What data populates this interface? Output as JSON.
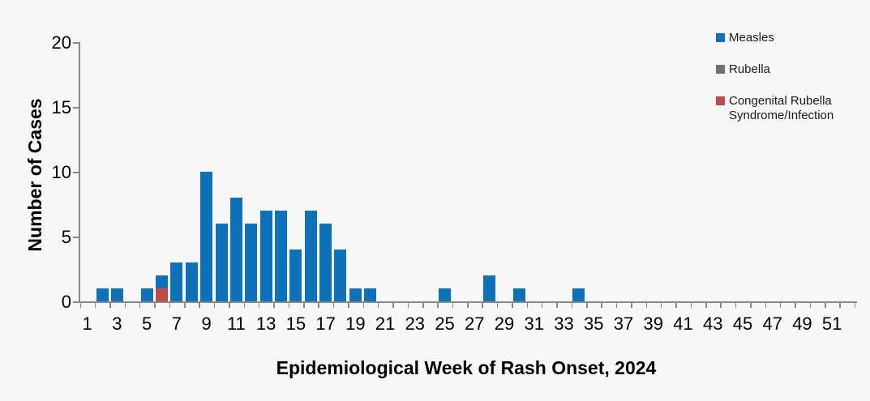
{
  "chart_data": {
    "type": "bar",
    "stacked": true,
    "title": "",
    "xlabel": "Epidemiological Week of Rash Onset, 2024",
    "ylabel": "Number of Cases",
    "x_weeks_range": [
      1,
      52
    ],
    "xtick_labels": [
      "1",
      "3",
      "5",
      "7",
      "9",
      "11",
      "13",
      "15",
      "17",
      "19",
      "21",
      "23",
      "25",
      "27",
      "29",
      "31",
      "33",
      "35",
      "37",
      "39",
      "41",
      "43",
      "45",
      "47",
      "49",
      "51"
    ],
    "yticks": [
      "0",
      "5",
      "10",
      "15",
      "20"
    ],
    "ytick_values": [
      0,
      5,
      10,
      15,
      20
    ],
    "ylim": [
      0,
      20
    ],
    "grid": false,
    "legend_position": "top-right",
    "series": [
      {
        "name": "Measles",
        "color": "#0f72b8",
        "values": [
          0,
          1,
          1,
          0,
          1,
          1,
          3,
          3,
          10,
          6,
          8,
          6,
          7,
          7,
          4,
          7,
          6,
          4,
          1,
          1,
          0,
          0,
          0,
          0,
          1,
          0,
          0,
          2,
          0,
          1,
          0,
          0,
          0,
          1,
          0,
          0,
          0,
          0,
          0,
          0,
          0,
          0,
          0,
          0,
          0,
          0,
          0,
          0,
          0,
          0,
          0,
          0
        ]
      },
      {
        "name": "Rubella",
        "color": "#6f6f6f",
        "values": [
          0,
          0,
          0,
          0,
          0,
          0,
          0,
          0,
          0,
          0,
          0,
          0,
          0,
          0,
          0,
          0,
          0,
          0,
          0,
          0,
          0,
          0,
          0,
          0,
          0,
          0,
          0,
          0,
          0,
          0,
          0,
          0,
          0,
          0,
          0,
          0,
          0,
          0,
          0,
          0,
          0,
          0,
          0,
          0,
          0,
          0,
          0,
          0,
          0,
          0,
          0,
          0
        ]
      },
      {
        "name": "Congenital Rubella Syndrome/Infection",
        "color": "#be4b48",
        "values": [
          0,
          0,
          0,
          0,
          0,
          1,
          0,
          0,
          0,
          0,
          0,
          0,
          0,
          0,
          0,
          0,
          0,
          0,
          0,
          0,
          0,
          0,
          0,
          0,
          0,
          0,
          0,
          0,
          0,
          0,
          0,
          0,
          0,
          0,
          0,
          0,
          0,
          0,
          0,
          0,
          0,
          0,
          0,
          0,
          0,
          0,
          0,
          0,
          0,
          0,
          0,
          0
        ]
      }
    ],
    "stack_order_bottom_to_top": [
      2,
      1,
      0
    ],
    "legend": [
      {
        "label": "Measles",
        "color": "#0f72b8"
      },
      {
        "label": "Rubella",
        "color": "#6f6f6f"
      },
      {
        "label": "Congenital Rubella Syndrome/Infection",
        "color": "#be4b48"
      }
    ],
    "colors": {
      "axis": "#898989",
      "background": "#f7f7f7",
      "text": "#000000"
    }
  }
}
